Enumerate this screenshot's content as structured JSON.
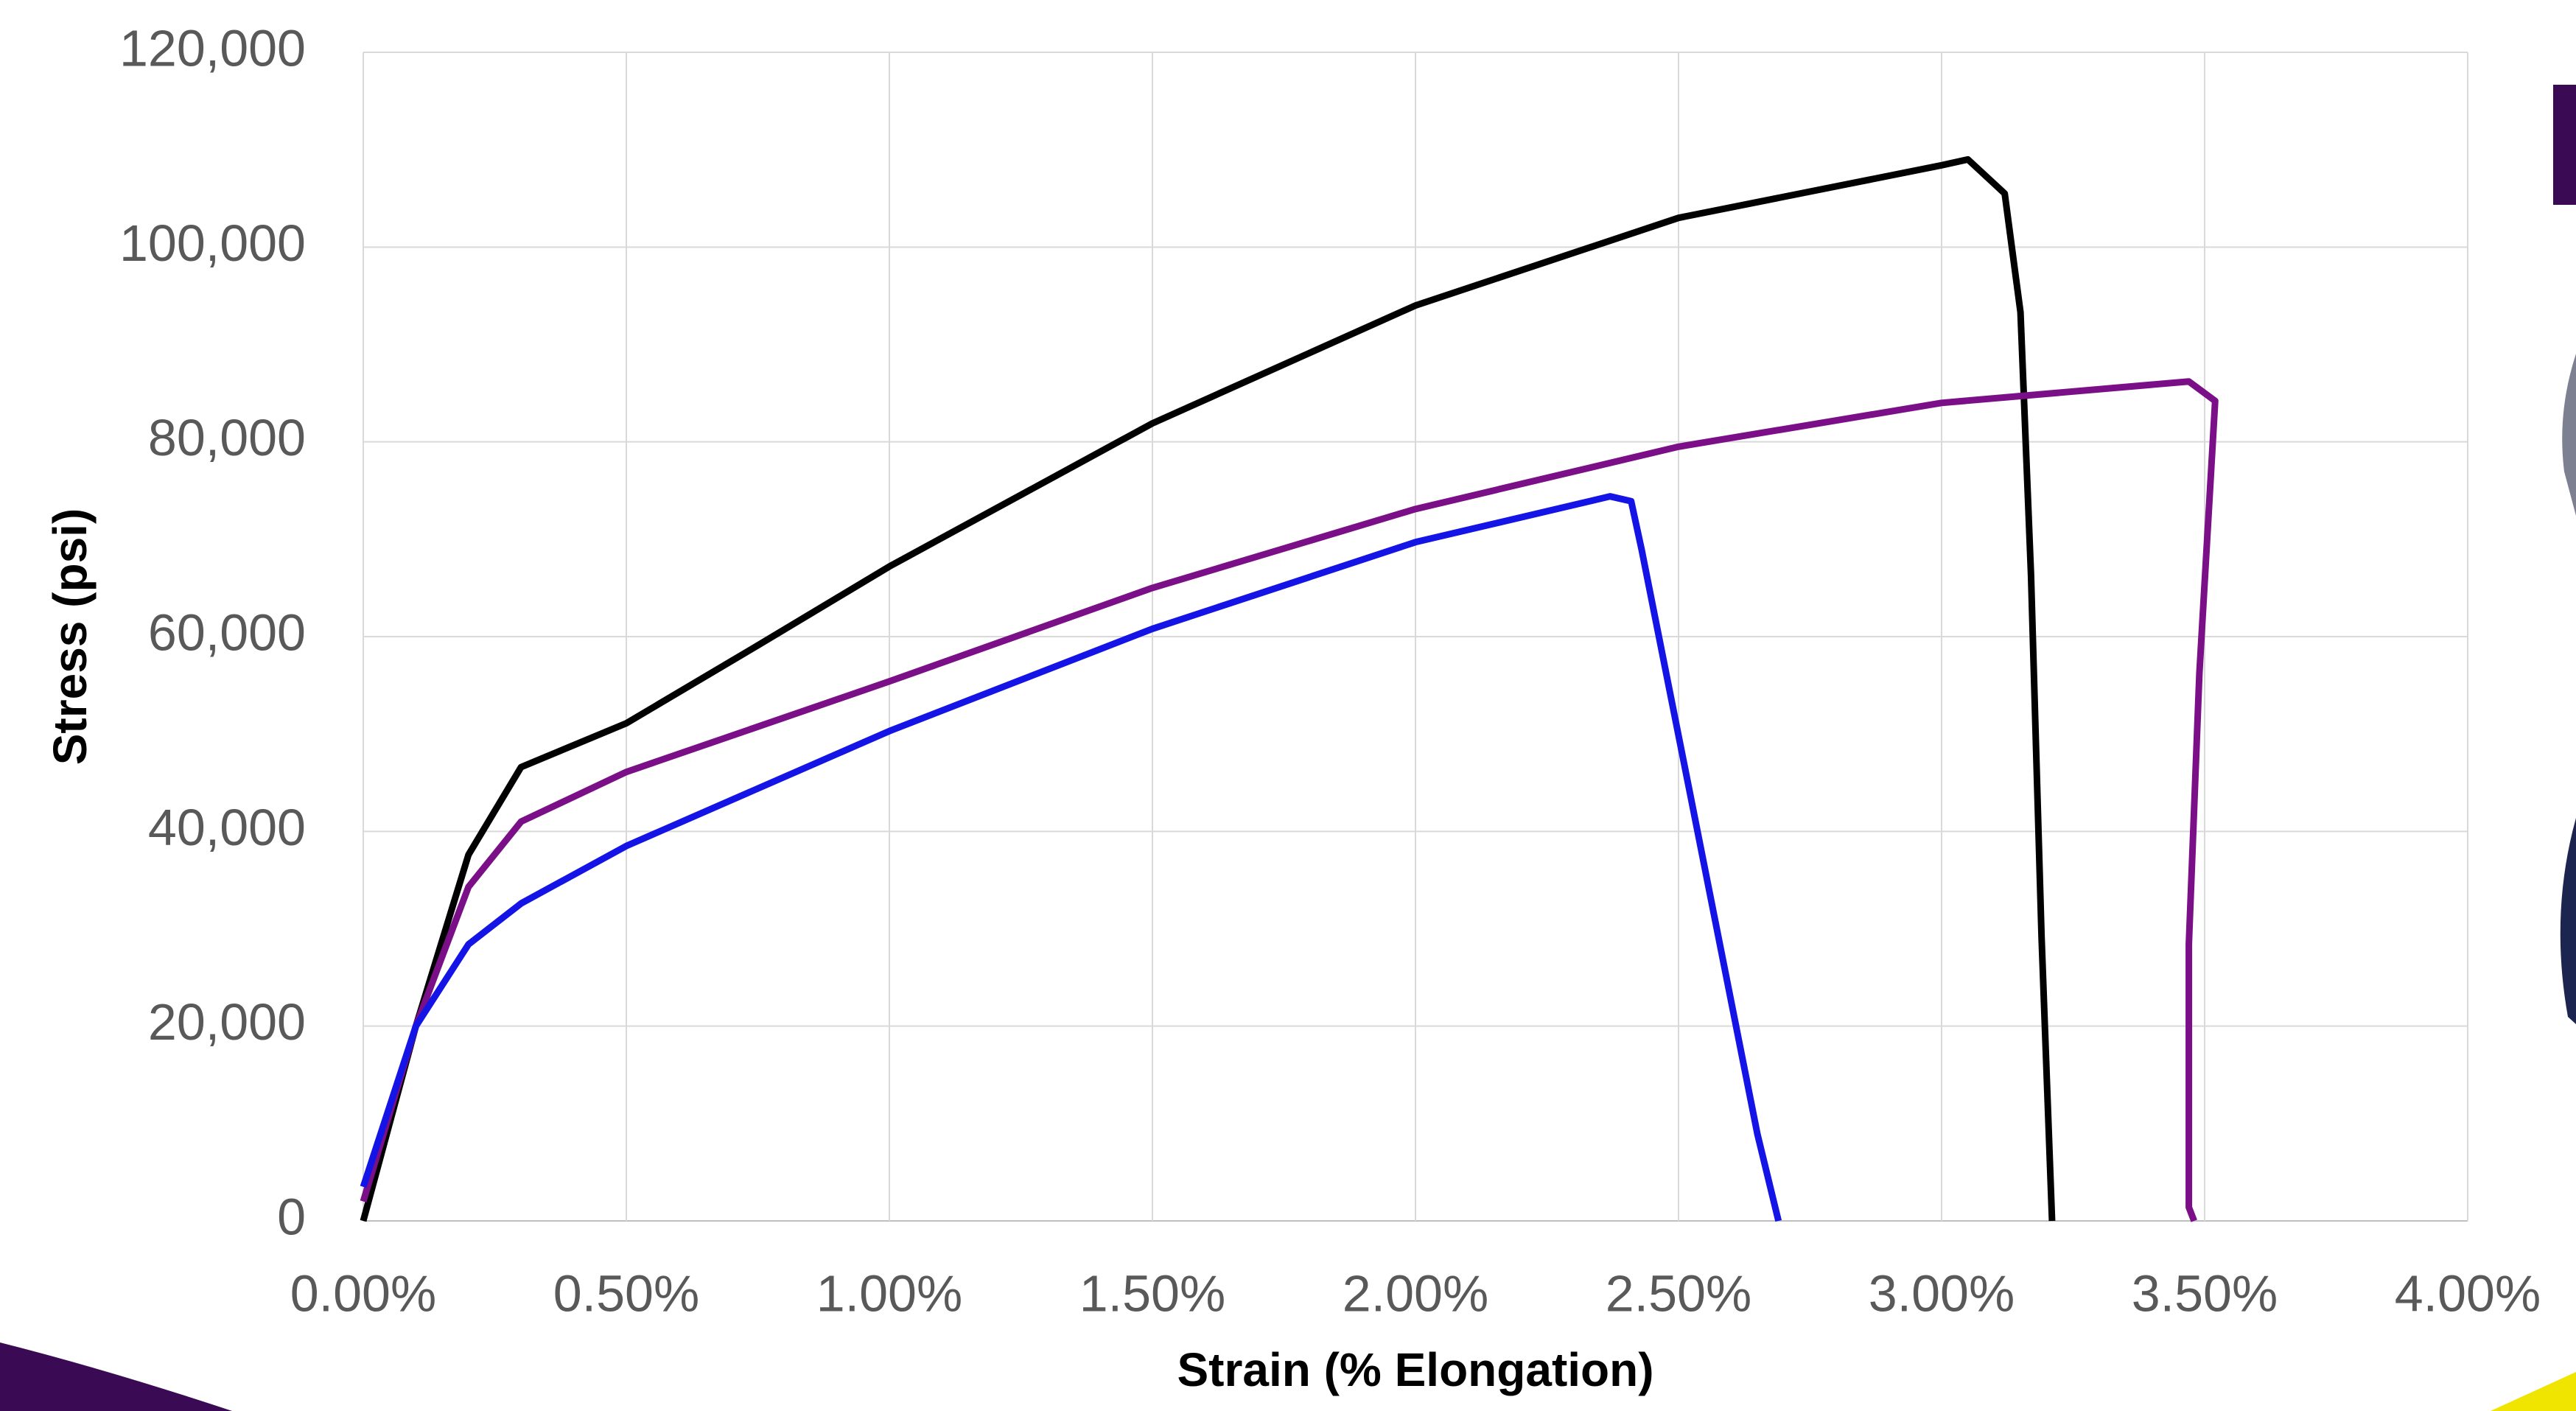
{
  "chart_data": {
    "type": "line",
    "x_label": "Strain (% Elongation)",
    "y_label": "Stress (psi)",
    "xlim": [
      0,
      4
    ],
    "ylim": [
      0,
      120000
    ],
    "xticks": [
      {
        "value": 0,
        "label": "0.00%"
      },
      {
        "value": 0.5,
        "label": "0.50%"
      },
      {
        "value": 1,
        "label": "1.00%"
      },
      {
        "value": 1.5,
        "label": "1.50%"
      },
      {
        "value": 2,
        "label": "2.00%"
      },
      {
        "value": 2.5,
        "label": "2.50%"
      },
      {
        "value": 3,
        "label": "3.00%"
      },
      {
        "value": 3.5,
        "label": "3.50%"
      },
      {
        "value": 4,
        "label": "4.00%"
      }
    ],
    "yticks": [
      0,
      {
        "value": 20000,
        "label": "20,000"
      },
      {
        "value": 40000,
        "label": "40,000"
      },
      {
        "value": 60000,
        "label": "60,000"
      },
      {
        "value": 80000,
        "label": "80,000"
      },
      {
        "value": 100000,
        "label": "100,000"
      },
      {
        "value": 120000,
        "label": "120,000"
      }
    ],
    "grid": true,
    "series": [
      {
        "color": "#000000",
        "x": [
          0,
          0.1,
          0.2,
          0.3,
          0.5,
          0.75,
          1.0,
          1.5,
          2.0,
          2.5,
          3.0,
          3.05,
          3.12,
          3.15,
          3.17,
          3.19,
          3.21
        ],
        "values": [
          0,
          20000,
          37600,
          46600,
          51100,
          59100,
          67200,
          81900,
          94000,
          103000,
          108400,
          109000,
          105500,
          93300,
          66300,
          29200,
          0
        ]
      },
      {
        "color": "#7b0f87",
        "x": [
          0,
          0.1,
          0.2,
          0.3,
          0.5,
          1.0,
          1.5,
          2.0,
          2.5,
          3.0,
          3.47,
          3.52,
          3.49,
          3.47,
          3.47,
          3.48
        ],
        "values": [
          2000,
          20000,
          34300,
          41000,
          46100,
          55400,
          65000,
          73100,
          79500,
          84000,
          86200,
          84200,
          56200,
          28400,
          1400,
          0
        ]
      },
      {
        "color": "#1414e6",
        "x": [
          0,
          0.1,
          0.2,
          0.3,
          0.5,
          1.0,
          1.5,
          2.0,
          2.37,
          2.41,
          2.43,
          2.52,
          2.65,
          2.69
        ],
        "values": [
          3500,
          20000,
          28400,
          32600,
          38500,
          50300,
          60800,
          69700,
          74400,
          73900,
          68900,
          44400,
          8900,
          0
        ]
      }
    ]
  }
}
